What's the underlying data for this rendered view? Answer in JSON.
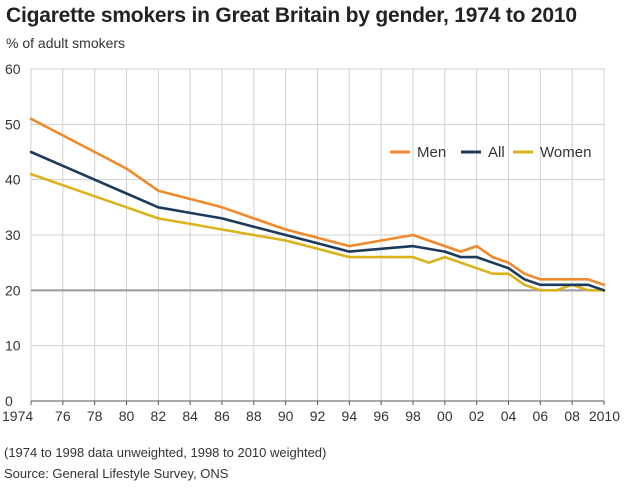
{
  "header": {
    "title": "Cigarette smokers in Great Britain by gender, 1974 to 2010",
    "subtitle": "% of adult smokers"
  },
  "footer": {
    "note": "(1974 to 1998 data unweighted, 1998 to 2010 weighted)",
    "source": "Source: General Lifestyle Survey, ONS"
  },
  "colors": {
    "men": "#f0892b",
    "all": "#1b3a5c",
    "women": "#dbb21a",
    "grid": "#d0d0d0",
    "reference": "#999999"
  },
  "chart_data": {
    "type": "line",
    "title": "Cigarette smokers in Great Britain by gender, 1974 to 2010",
    "ylabel": "% of adult smokers",
    "xlim": [
      1974,
      2010
    ],
    "ylim": [
      0,
      60
    ],
    "yticks": [
      0,
      10,
      20,
      30,
      40,
      50,
      60
    ],
    "xticks": [
      1974,
      1976,
      1978,
      1980,
      1982,
      1984,
      1986,
      1988,
      1990,
      1992,
      1994,
      1996,
      1998,
      2000,
      2002,
      2004,
      2006,
      2008,
      2010
    ],
    "xtick_labels": [
      "1974",
      "76",
      "78",
      "80",
      "82",
      "84",
      "86",
      "88",
      "90",
      "92",
      "94",
      "96",
      "98",
      "00",
      "02",
      "04",
      "06",
      "08",
      "2010"
    ],
    "grid": true,
    "reference_line": 20,
    "legend_position": "right",
    "series": [
      {
        "name": "Men",
        "color": "#f0892b",
        "x": [
          1974,
          1976,
          1978,
          1980,
          1982,
          1984,
          1986,
          1988,
          1990,
          1992,
          1994,
          1996,
          1998,
          2000,
          2001,
          2002,
          2003,
          2004,
          2005,
          2006,
          2007,
          2008,
          2009,
          2010
        ],
        "values": [
          51,
          48,
          45,
          42,
          38,
          36.5,
          35,
          33,
          31,
          29.5,
          28,
          29,
          30,
          28,
          27,
          28,
          26,
          25,
          23,
          22,
          22,
          22,
          22,
          21
        ]
      },
      {
        "name": "All",
        "color": "#1b3a5c",
        "x": [
          1974,
          1976,
          1978,
          1980,
          1982,
          1984,
          1986,
          1988,
          1990,
          1992,
          1994,
          1996,
          1998,
          2000,
          2001,
          2002,
          2003,
          2004,
          2005,
          2006,
          2007,
          2008,
          2009,
          2010
        ],
        "values": [
          45,
          42.5,
          40,
          37.5,
          35,
          34,
          33,
          31.5,
          30,
          28.5,
          27,
          27.5,
          28,
          27,
          26,
          26,
          25,
          24,
          22,
          21,
          21,
          21,
          21,
          20
        ]
      },
      {
        "name": "Women",
        "color": "#dbb21a",
        "x": [
          1974,
          1976,
          1978,
          1980,
          1982,
          1984,
          1986,
          1988,
          1990,
          1992,
          1994,
          1996,
          1998,
          1999,
          2000,
          2001,
          2002,
          2003,
          2004,
          2005,
          2006,
          2007,
          2008,
          2009,
          2010
        ],
        "values": [
          41,
          39,
          37,
          35,
          33,
          32,
          31,
          30,
          29,
          27.5,
          26,
          26,
          26,
          25,
          26,
          25,
          24,
          23,
          23,
          21,
          20,
          20,
          21,
          20,
          20
        ]
      }
    ]
  }
}
